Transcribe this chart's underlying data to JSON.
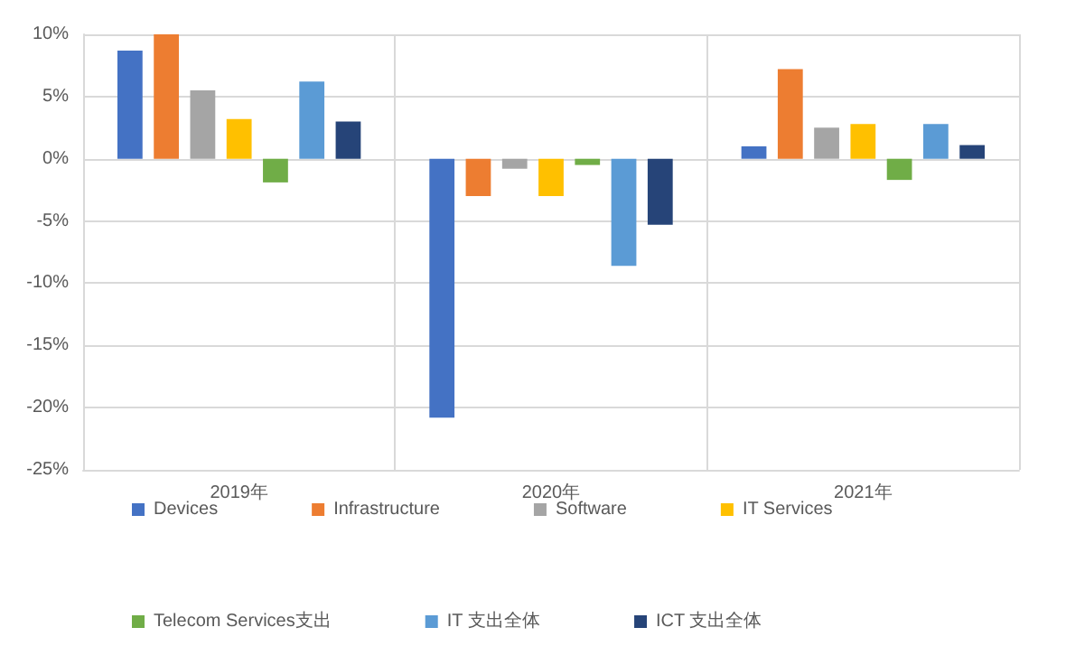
{
  "chart_data": {
    "type": "bar",
    "categories": [
      "2019年",
      "2020年",
      "2021年"
    ],
    "series": [
      {
        "name": "Devices",
        "color": "#4472c4",
        "values": [
          8.7,
          -20.8,
          1.0
        ]
      },
      {
        "name": "Infrastructure",
        "color": "#ed7d31",
        "values": [
          10,
          -3.0,
          7.2
        ]
      },
      {
        "name": "Software",
        "color": "#a5a5a5",
        "values": [
          5.5,
          -0.8,
          2.5
        ]
      },
      {
        "name": "IT Services",
        "color": "#ffc000",
        "values": [
          3.2,
          -3.0,
          2.8
        ]
      },
      {
        "name": "Telecom Services支出",
        "color": "#70ad47",
        "values": [
          -1.9,
          -0.5,
          -1.7
        ]
      },
      {
        "name": "IT 支出全体",
        "color": "#5b9bd5",
        "values": [
          6.2,
          -8.6,
          2.8
        ]
      },
      {
        "name": "ICT 支出全体",
        "color": "#264478",
        "values": [
          3.0,
          -5.3,
          1.1
        ]
      }
    ],
    "ylim": [
      -25,
      10
    ],
    "yticks": [
      {
        "value": -25,
        "label": "-25%"
      },
      {
        "value": -20,
        "label": "-20%"
      },
      {
        "value": -15,
        "label": "-15%"
      },
      {
        "value": -10,
        "label": "-10%"
      },
      {
        "value": -5,
        "label": "-5%"
      },
      {
        "value": 0,
        "label": "0%"
      },
      {
        "value": 5,
        "label": "5%"
      },
      {
        "value": 10,
        "label": "10%"
      }
    ],
    "grid": true,
    "legend": "bottom"
  }
}
